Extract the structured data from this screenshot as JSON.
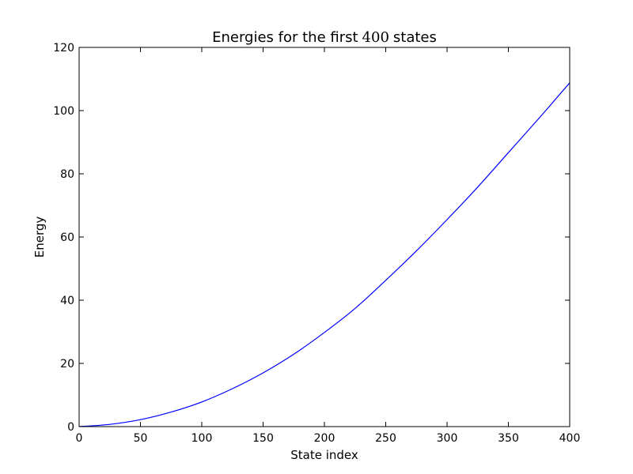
{
  "chart_data": {
    "type": "line",
    "title": {
      "prefix": "Energies for the first",
      "number": "400",
      "suffix": "states"
    },
    "xlabel": "State index",
    "ylabel": "Energy",
    "xlim": [
      0,
      400
    ],
    "ylim": [
      0,
      120
    ],
    "xticks": [
      0,
      50,
      100,
      150,
      200,
      250,
      300,
      350,
      400
    ],
    "yticks": [
      0,
      20,
      40,
      60,
      80,
      100,
      120
    ],
    "grid": false,
    "series": [
      {
        "color": "#0000ff",
        "x": [
          0,
          25,
          50,
          75,
          100,
          125,
          150,
          175,
          200,
          225,
          250,
          275,
          300,
          325,
          350,
          375,
          400
        ],
        "y": [
          0,
          0.7,
          2.2,
          4.6,
          7.8,
          12.0,
          17.0,
          22.9,
          29.8,
          37.4,
          46.3,
          55.6,
          65.5,
          75.8,
          86.7,
          97.6,
          108.8
        ]
      }
    ]
  }
}
